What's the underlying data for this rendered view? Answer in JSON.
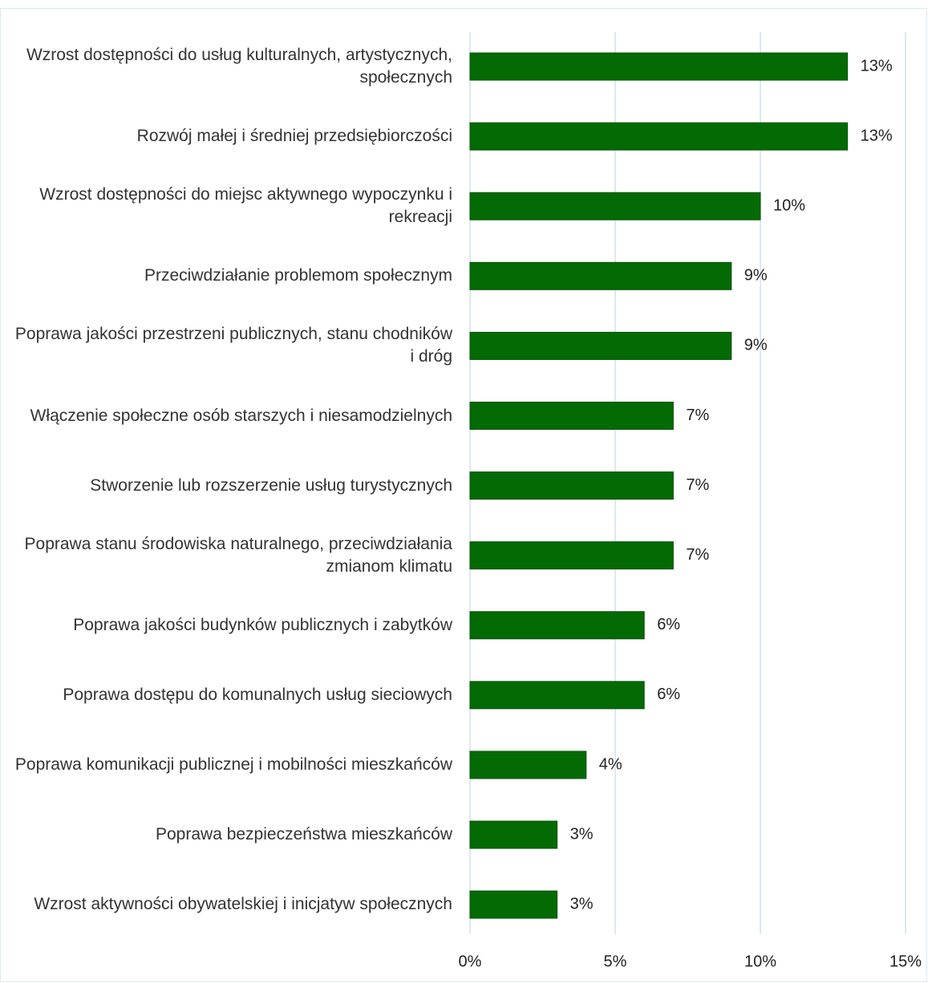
{
  "chart_data": {
    "type": "bar",
    "orientation": "horizontal",
    "categories": [
      "Wzrost dostępności do usług kulturalnych, artystycznych, społecznych",
      "Rozwój małej i średniej przedsiębiorczości",
      "Wzrost dostępności do miejsc aktywnego wypoczynku i rekreacji",
      "Przeciwdziałanie problemom społecznym",
      "Poprawa jakości przestrzeni publicznych, stanu chodników i dróg",
      "Włączenie społeczne osób starszych i niesamodzielnych",
      "Stworzenie lub rozszerzenie usług turystycznych",
      "Poprawa stanu środowiska naturalnego, przeciwdziałania zmianom klimatu",
      "Poprawa jakości budynków publicznych i zabytków",
      "Poprawa dostępu do komunalnych usług sieciowych",
      "Poprawa komunikacji publicznej i mobilności mieszkańców",
      "Poprawa bezpieczeństwa mieszkańców",
      "Wzrost aktywności obywatelskiej i inicjatyw społecznych"
    ],
    "values": [
      13,
      13,
      10,
      9,
      9,
      7,
      7,
      7,
      6,
      6,
      4,
      3,
      3
    ],
    "value_labels": [
      "13%",
      "13%",
      "10%",
      "9%",
      "9%",
      "7%",
      "7%",
      "7%",
      "6%",
      "6%",
      "4%",
      "3%",
      "3%"
    ],
    "color": "#046a04",
    "xlim": [
      0,
      15
    ],
    "xticks": [
      {
        "value": 0,
        "label": "0%"
      },
      {
        "value": 5,
        "label": "5%"
      },
      {
        "value": 10,
        "label": "10%"
      },
      {
        "value": 15,
        "label": "15%"
      }
    ],
    "grid": true
  }
}
